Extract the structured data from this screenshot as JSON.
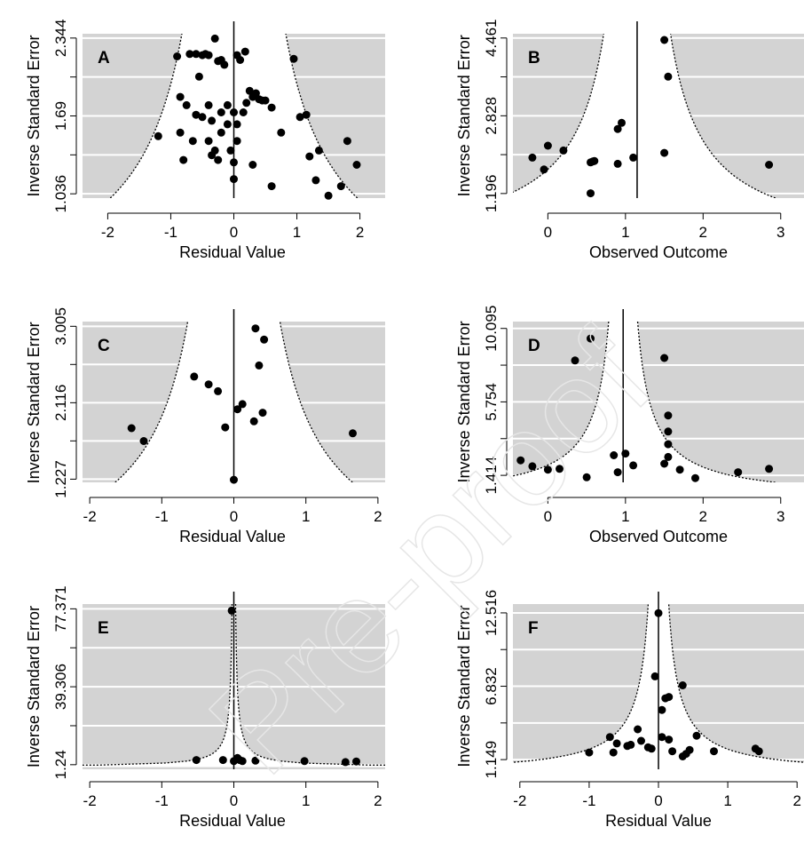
{
  "watermark": "Pre-proof",
  "chart_data": [
    {
      "type": "scatter",
      "label": "A",
      "xlabel": "Residual Value",
      "ylabel": "Inverse Standard Error",
      "xlim": [
        -2.4,
        2.4
      ],
      "ylim": [
        1.0,
        2.38
      ],
      "xticks": [
        "-2",
        "-1",
        "0",
        "1",
        "2"
      ],
      "xtick_values": [
        -2,
        -1,
        0,
        1,
        2
      ],
      "yticks": [
        "1.036",
        "1.69",
        "2.344"
      ],
      "ytick_values": [
        1.036,
        1.69,
        2.344
      ],
      "gridlines": [
        1.036,
        1.363,
        1.69,
        2.017,
        2.344
      ],
      "center": 0,
      "funnel": {
        "mu": 0,
        "z": 1.96
      },
      "points": [
        [
          -1.2,
          1.52
        ],
        [
          -0.9,
          2.19
        ],
        [
          -0.7,
          2.21
        ],
        [
          -0.6,
          2.21
        ],
        [
          -0.5,
          2.2
        ],
        [
          -0.4,
          2.2
        ],
        [
          -0.45,
          2.21
        ],
        [
          -0.3,
          2.34
        ],
        [
          -0.25,
          2.15
        ],
        [
          -0.2,
          2.16
        ],
        [
          -0.15,
          2.12
        ],
        [
          0.05,
          2.2
        ],
        [
          0.1,
          2.16
        ],
        [
          0.18,
          2.23
        ],
        [
          0.95,
          2.17
        ],
        [
          -0.85,
          1.85
        ],
        [
          -0.75,
          1.78
        ],
        [
          -0.6,
          1.7
        ],
        [
          -0.5,
          1.68
        ],
        [
          -0.55,
          2.02
        ],
        [
          -0.4,
          1.78
        ],
        [
          -0.35,
          1.65
        ],
        [
          -0.2,
          1.72
        ],
        [
          -0.1,
          1.78
        ],
        [
          0.0,
          1.72
        ],
        [
          0.05,
          1.62
        ],
        [
          0.15,
          1.72
        ],
        [
          0.2,
          1.8
        ],
        [
          0.25,
          1.9
        ],
        [
          0.3,
          1.85
        ],
        [
          0.35,
          1.88
        ],
        [
          0.4,
          1.83
        ],
        [
          0.45,
          1.82
        ],
        [
          0.5,
          1.82
        ],
        [
          0.6,
          1.76
        ],
        [
          -0.85,
          1.55
        ],
        [
          -0.65,
          1.48
        ],
        [
          -0.4,
          1.48
        ],
        [
          -0.3,
          1.4
        ],
        [
          -0.2,
          1.55
        ],
        [
          -0.1,
          1.62
        ],
        [
          0.05,
          1.48
        ],
        [
          -0.8,
          1.32
        ],
        [
          -0.35,
          1.36
        ],
        [
          -0.25,
          1.32
        ],
        [
          -0.05,
          1.4
        ],
        [
          0.0,
          1.3
        ],
        [
          0.0,
          1.16
        ],
        [
          0.3,
          1.28
        ],
        [
          0.75,
          1.55
        ],
        [
          1.05,
          1.68
        ],
        [
          1.15,
          1.7
        ],
        [
          1.2,
          1.35
        ],
        [
          1.35,
          1.4
        ],
        [
          1.8,
          1.48
        ],
        [
          1.95,
          1.28
        ],
        [
          1.3,
          1.15
        ],
        [
          1.7,
          1.1
        ],
        [
          1.5,
          1.02
        ],
        [
          0.6,
          1.1
        ]
      ]
    },
    {
      "type": "scatter",
      "label": "B",
      "xlabel": "Observed Outcome",
      "ylabel": "Inverse Standard Error",
      "xlim": [
        -0.45,
        3.3
      ],
      "ylim": [
        1.1,
        4.55
      ],
      "xticks": [
        "0",
        "1",
        "2",
        "3"
      ],
      "xtick_values": [
        0,
        1,
        2,
        3
      ],
      "yticks": [
        "1.196",
        "2.828",
        "4.461"
      ],
      "ytick_values": [
        1.196,
        2.828,
        4.461
      ],
      "gridlines": [
        1.196,
        2.012,
        2.828,
        3.645,
        4.461
      ],
      "center": 1.15,
      "funnel": {
        "mu": 1.15,
        "z": 1.96
      },
      "points": [
        [
          1.5,
          4.42
        ],
        [
          1.55,
          3.65
        ],
        [
          -0.2,
          1.95
        ],
        [
          0.0,
          2.2
        ],
        [
          0.2,
          2.1
        ],
        [
          -0.05,
          1.7
        ],
        [
          0.55,
          1.85
        ],
        [
          0.6,
          1.88
        ],
        [
          0.58,
          1.87
        ],
        [
          0.9,
          1.82
        ],
        [
          0.9,
          2.55
        ],
        [
          0.95,
          2.68
        ],
        [
          1.1,
          1.95
        ],
        [
          1.5,
          2.05
        ],
        [
          0.55,
          1.2
        ],
        [
          2.85,
          1.8
        ]
      ]
    },
    {
      "type": "scatter",
      "label": "C",
      "xlabel": "Residual Value",
      "ylabel": "Inverse Standard Error",
      "xlim": [
        -2.1,
        2.1
      ],
      "ylim": [
        1.19,
        3.06
      ],
      "xticks": [
        "-2",
        "-1",
        "0",
        "1",
        "2"
      ],
      "xtick_values": [
        -2,
        -1,
        0,
        1,
        2
      ],
      "yticks": [
        "1.227",
        "2.116",
        "3.005"
      ],
      "ytick_values": [
        1.227,
        2.116,
        3.005
      ],
      "gridlines": [
        1.227,
        1.672,
        2.116,
        2.561,
        3.005
      ],
      "center": 0,
      "funnel": {
        "mu": 0,
        "z": 1.96
      },
      "points": [
        [
          0.3,
          2.98
        ],
        [
          0.42,
          2.85
        ],
        [
          0.35,
          2.55
        ],
        [
          -0.55,
          2.42
        ],
        [
          -0.35,
          2.33
        ],
        [
          -0.22,
          2.25
        ],
        [
          0.12,
          2.1
        ],
        [
          0.05,
          2.04
        ],
        [
          0.4,
          2.0
        ],
        [
          0.28,
          1.9
        ],
        [
          -0.12,
          1.83
        ],
        [
          -1.42,
          1.82
        ],
        [
          -1.25,
          1.67
        ],
        [
          1.65,
          1.76
        ],
        [
          0.0,
          1.22
        ]
      ]
    },
    {
      "type": "scatter",
      "label": "D",
      "xlabel": "Observed Outcome",
      "ylabel": "Inverse Standard Error",
      "xlim": [
        -0.45,
        3.3
      ],
      "ylim": [
        1.0,
        10.5
      ],
      "xticks": [
        "0",
        "1",
        "2",
        "3"
      ],
      "xtick_values": [
        0,
        1,
        2,
        3
      ],
      "yticks": [
        "1.414",
        "5.754",
        "10.095"
      ],
      "ytick_values": [
        1.414,
        5.754,
        10.095
      ],
      "gridlines": [
        1.414,
        3.584,
        5.754,
        7.925,
        10.095
      ],
      "center": 0.97,
      "funnel": {
        "mu": 0.97,
        "z": 1.96
      },
      "points": [
        [
          0.55,
          9.5
        ],
        [
          0.35,
          8.2
        ],
        [
          1.5,
          8.35
        ],
        [
          -0.35,
          2.3
        ],
        [
          -0.2,
          1.95
        ],
        [
          0.0,
          1.75
        ],
        [
          0.15,
          1.8
        ],
        [
          0.5,
          1.3
        ],
        [
          0.85,
          2.6
        ],
        [
          0.9,
          1.6
        ],
        [
          1.0,
          2.7
        ],
        [
          1.1,
          2.0
        ],
        [
          1.5,
          2.1
        ],
        [
          1.55,
          2.5
        ],
        [
          1.55,
          3.25
        ],
        [
          1.55,
          4.0
        ],
        [
          1.55,
          4.95
        ],
        [
          1.7,
          1.75
        ],
        [
          1.9,
          1.25
        ],
        [
          2.45,
          1.6
        ],
        [
          2.85,
          1.8
        ]
      ]
    },
    {
      "type": "scatter",
      "label": "E",
      "xlabel": "Residual Value",
      "ylabel": "Inverse Standard Error",
      "xlim": [
        -2.1,
        2.1
      ],
      "ylim": [
        -1.0,
        79.7
      ],
      "xticks": [
        "-2",
        "-1",
        "0",
        "1",
        "2"
      ],
      "xtick_values": [
        -2,
        -1,
        0,
        1,
        2
      ],
      "yticks": [
        "1.24",
        "39.306",
        "77.371"
      ],
      "ytick_values": [
        1.24,
        39.306,
        77.371
      ],
      "gridlines": [
        1.24,
        20.273,
        39.306,
        58.338,
        77.371
      ],
      "center": 0,
      "funnel": {
        "mu": 0,
        "z": 1.96
      },
      "points": [
        [
          -0.03,
          76.5
        ],
        [
          -0.52,
          3.5
        ],
        [
          -0.15,
          3.5
        ],
        [
          0.0,
          3.0
        ],
        [
          0.05,
          4.5
        ],
        [
          0.08,
          3.5
        ],
        [
          0.12,
          3.0
        ],
        [
          0.3,
          3.2
        ],
        [
          0.98,
          3.0
        ],
        [
          1.55,
          2.5
        ],
        [
          1.7,
          2.8
        ]
      ]
    },
    {
      "type": "scatter",
      "label": "F",
      "xlabel": "Residual Value",
      "ylabel": "Inverse Standard Error",
      "xlim": [
        -2.1,
        2.1
      ],
      "ylim": [
        0.4,
        13.2
      ],
      "xticks": [
        "-2",
        "-1",
        "0",
        "1",
        "2"
      ],
      "xtick_values": [
        -2,
        -1,
        0,
        1,
        2
      ],
      "yticks": [
        "1.149",
        "6.832",
        "12.516"
      ],
      "ytick_values": [
        1.149,
        6.832,
        12.516
      ],
      "gridlines": [
        1.149,
        3.99,
        6.832,
        9.674,
        12.516
      ],
      "center": 0,
      "funnel": {
        "mu": 0,
        "z": 1.96
      },
      "points": [
        [
          0.0,
          12.5
        ],
        [
          -0.05,
          7.6
        ],
        [
          0.35,
          6.9
        ],
        [
          0.15,
          6.0
        ],
        [
          0.1,
          5.9
        ],
        [
          0.05,
          5.0
        ],
        [
          -0.3,
          3.5
        ],
        [
          -0.7,
          2.9
        ],
        [
          -0.6,
          2.4
        ],
        [
          -0.45,
          2.2
        ],
        [
          -0.4,
          2.3
        ],
        [
          -0.25,
          2.6
        ],
        [
          -0.15,
          2.1
        ],
        [
          -0.1,
          2.0
        ],
        [
          0.05,
          2.9
        ],
        [
          0.15,
          2.7
        ],
        [
          0.2,
          1.8
        ],
        [
          0.4,
          1.6
        ],
        [
          0.45,
          1.9
        ],
        [
          0.55,
          3.0
        ],
        [
          0.8,
          1.8
        ],
        [
          -1.0,
          1.7
        ],
        [
          -0.65,
          1.7
        ],
        [
          0.35,
          1.4
        ],
        [
          1.4,
          2.0
        ],
        [
          1.45,
          1.8
        ]
      ]
    }
  ]
}
